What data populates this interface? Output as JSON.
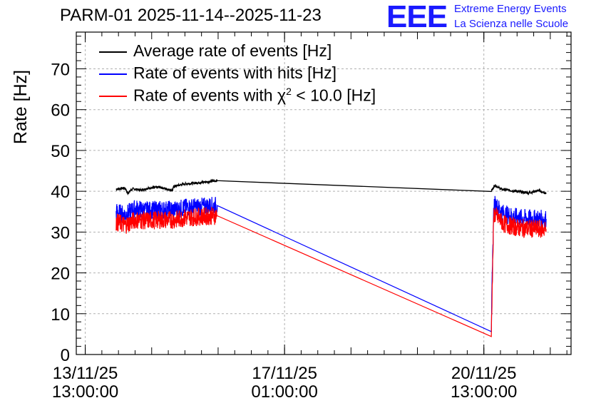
{
  "header": {
    "title": "PARM-01 2025-11-14--2025-11-23",
    "logo_text": "EEE",
    "logo_line1": "Extreme Energy Events",
    "logo_line2": "La Scienza nelle Scuole"
  },
  "colors": {
    "average": "#000000",
    "hits": "#0000ff",
    "chi2": "#ff0000",
    "grid": "#b0b0b0",
    "logo": "#1a1aff"
  },
  "chart_data": {
    "type": "line",
    "title": "PARM-01 2025-11-14--2025-11-23",
    "ylabel": "Rate [Hz]",
    "xlabel": "",
    "ylim": [
      0,
      79
    ],
    "yticks": [
      0,
      10,
      20,
      30,
      40,
      50,
      60,
      70
    ],
    "xlim_days": [
      -0.18,
      9.75
    ],
    "x_unit": "days since 13/11/25 13:00:00",
    "xticks": [
      {
        "pos": 0.0,
        "date": "13/11/25",
        "time": "13:00:00"
      },
      {
        "pos": 4.0,
        "date": "17/11/25",
        "time": "01:00:00"
      },
      {
        "pos": 8.0,
        "date": "20/11/25",
        "time": "13:00:00"
      }
    ],
    "grid": true,
    "legend_position": "top-left",
    "legend": [
      {
        "label": "Average rate of events [Hz]",
        "key": "average"
      },
      {
        "label": "Rate of events with hits [Hz]",
        "key": "hits"
      },
      {
        "label_prefix": "Rate of events with ",
        "label_chi": "χ",
        "label_sup": "2",
        "label_suffix": " < 10.0 [Hz]",
        "key": "chi2"
      }
    ],
    "series": [
      {
        "name": "Average rate of events [Hz]",
        "key": "average",
        "x": [
          0.62,
          0.8,
          0.85,
          0.95,
          1.1,
          1.3,
          1.5,
          1.75,
          1.78,
          2.0,
          2.2,
          2.5,
          2.65,
          8.15,
          8.22,
          8.35,
          8.6,
          8.9,
          9.1,
          9.25
        ],
        "y": [
          40.5,
          40.8,
          39.5,
          40.6,
          40.3,
          40.8,
          41.0,
          40.2,
          41.2,
          41.8,
          42.0,
          42.4,
          42.6,
          40.1,
          41.5,
          40.5,
          40.1,
          39.6,
          40.2,
          39.4
        ]
      },
      {
        "name": "Rate of events with hits [Hz]",
        "key": "hits",
        "x": [
          0.62,
          0.8,
          1.0,
          1.2,
          1.5,
          1.8,
          2.0,
          2.3,
          2.6,
          2.65,
          8.15,
          8.2,
          8.4,
          8.7,
          9.0,
          9.25
        ],
        "y": [
          35.0,
          34.2,
          35.8,
          35.3,
          35.5,
          35.5,
          36.0,
          36.2,
          36.5,
          36.5,
          7.0,
          37.0,
          34.5,
          33.5,
          33.3,
          33.2
        ]
      },
      {
        "name": "Rate of events with χ² < 10.0 [Hz]",
        "key": "chi2",
        "x": [
          0.62,
          0.8,
          1.0,
          1.2,
          1.5,
          1.8,
          2.0,
          2.3,
          2.6,
          2.65,
          8.15,
          8.2,
          8.4,
          8.7,
          9.0,
          9.25
        ],
        "y": [
          32.5,
          31.7,
          33.0,
          32.8,
          33.0,
          33.0,
          33.5,
          33.8,
          34.0,
          34.0,
          6.0,
          34.5,
          32.0,
          31.0,
          30.8,
          30.7
        ]
      }
    ]
  }
}
